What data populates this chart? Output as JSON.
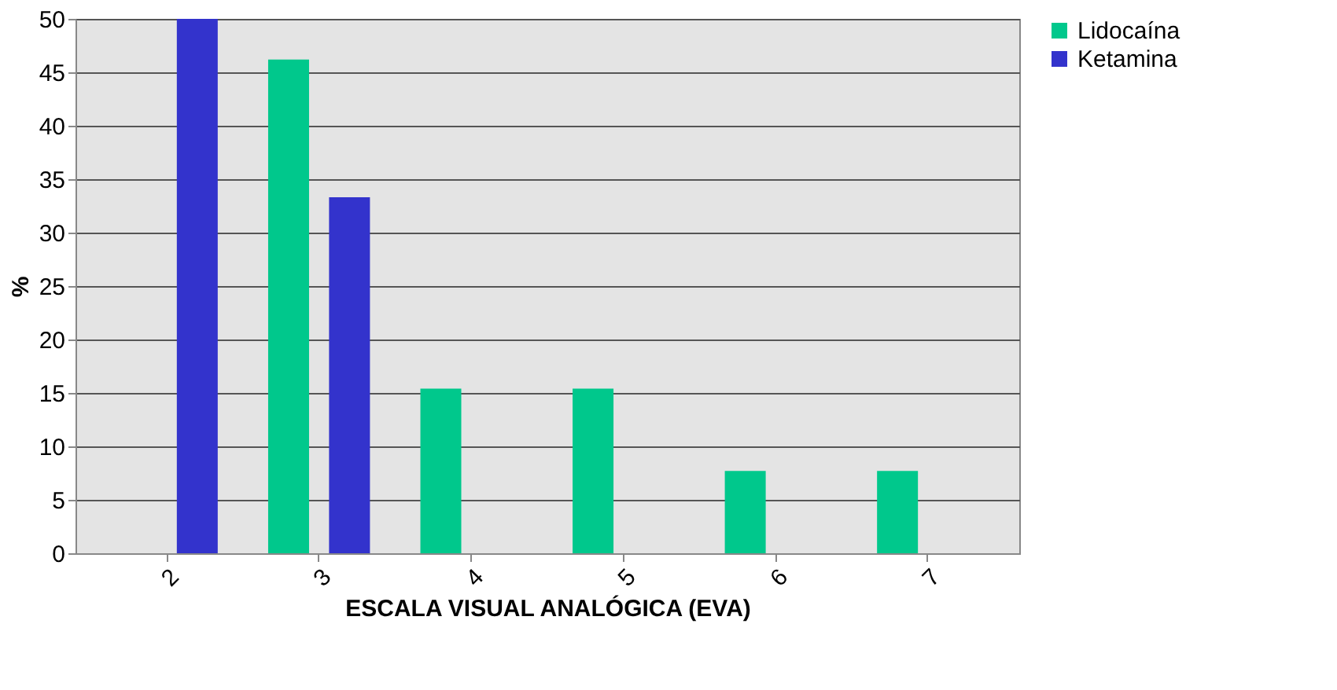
{
  "chart_data": {
    "type": "bar",
    "xlabel": "ESCALA VISUAL ANALÓGICA (EVA)",
    "ylabel": "%",
    "categories": [
      "2",
      "3",
      "4",
      "5",
      "6",
      "7"
    ],
    "series": [
      {
        "name": "Lidocaína",
        "color": "#00c88c",
        "values": [
          0,
          46.2,
          15.4,
          15.4,
          7.7,
          7.7
        ]
      },
      {
        "name": "Ketamina",
        "color": "#3333cc",
        "values": [
          50,
          33.3,
          0,
          0,
          0,
          0
        ]
      }
    ],
    "ylim": [
      0,
      50
    ],
    "yticks": [
      0,
      5,
      10,
      15,
      20,
      25,
      30,
      35,
      40,
      45,
      50
    ],
    "grid": "y",
    "legend": "right"
  }
}
